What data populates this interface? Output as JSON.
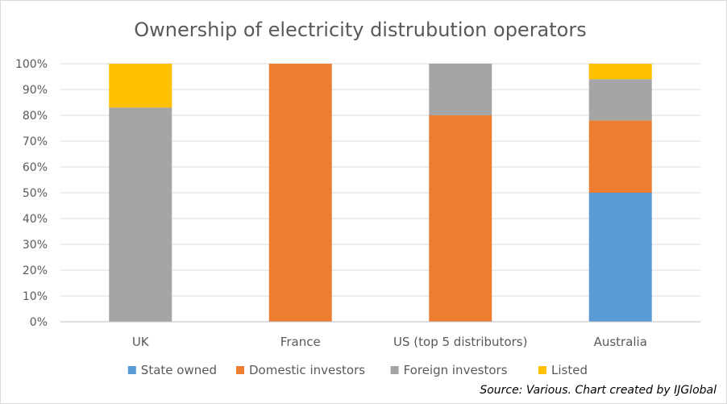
{
  "chart_data": {
    "type": "bar",
    "stacked": true,
    "title": "Ownership of electricity distrubution operators",
    "categories": [
      "UK",
      "France",
      "US (top 5 distributors)",
      "Australia"
    ],
    "ylim": [
      0,
      100
    ],
    "yticks": [
      0,
      10,
      20,
      30,
      40,
      50,
      60,
      70,
      80,
      90,
      100
    ],
    "ytick_labels": [
      "0%",
      "10%",
      "20%",
      "30%",
      "40%",
      "50%",
      "60%",
      "70%",
      "80%",
      "90%",
      "100%"
    ],
    "grid": true,
    "legend_position": "bottom",
    "series": [
      {
        "name": "State owned",
        "color": "#5b9bd5",
        "values": [
          0,
          0,
          0,
          50
        ]
      },
      {
        "name": "Domestic investors",
        "color": "#ed7d31",
        "values": [
          0,
          100,
          80,
          28
        ]
      },
      {
        "name": "Foreign investors",
        "color": "#a5a5a5",
        "values": [
          83,
          0,
          20,
          16
        ]
      },
      {
        "name": "Listed",
        "color": "#ffc000",
        "values": [
          17,
          0,
          0,
          6
        ]
      }
    ]
  },
  "source": "Source: Various. Chart created by IJGlobal"
}
